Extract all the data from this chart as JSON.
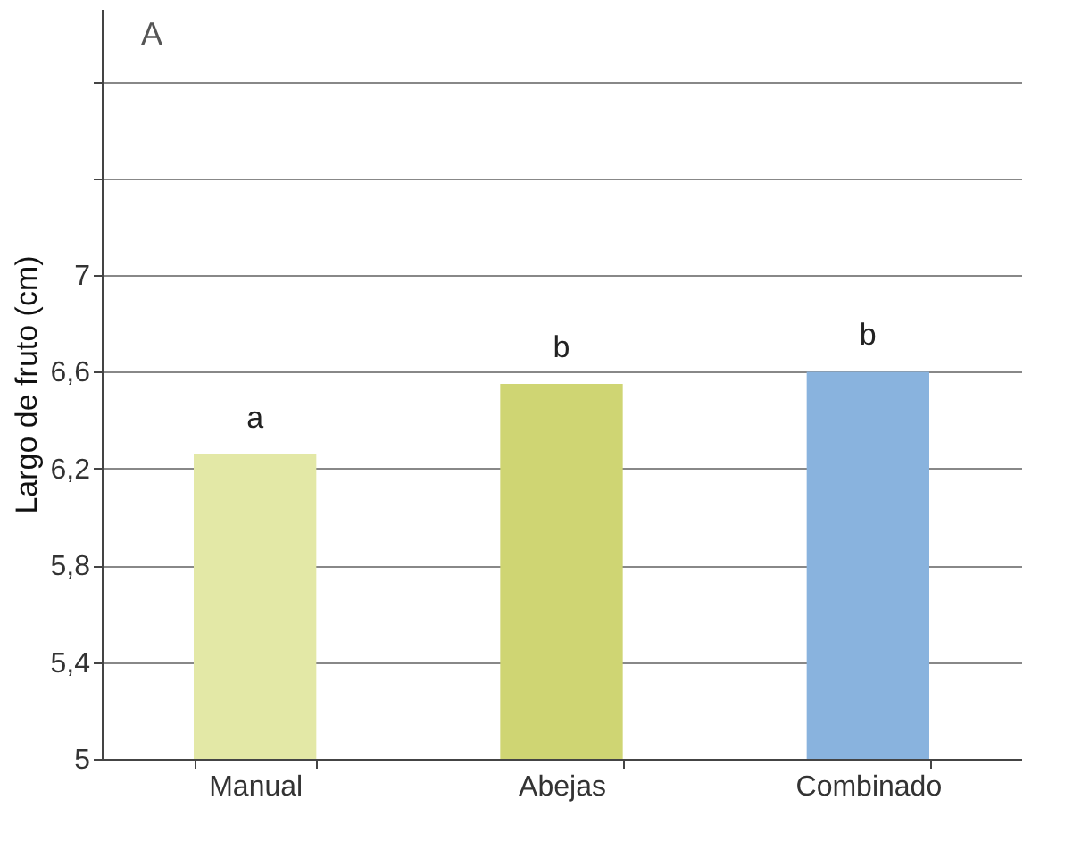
{
  "chart_data": {
    "type": "bar",
    "ylabel": "Largo de fruto (cm)",
    "categories": [
      "Manual",
      "Abejas",
      "Combinado"
    ],
    "values": [
      6.26,
      6.55,
      6.6
    ],
    "colors": [
      "#e3e8a6",
      "#cfd573",
      "#89b3de"
    ],
    "ylim": [
      5,
      8.1
    ],
    "yticks": [
      5,
      {
        "value": 5.4,
        "label": "5,4"
      },
      {
        "value": 5.8,
        "label": "5,8"
      },
      {
        "value": 6.2,
        "label": "6,2"
      },
      {
        "value": 6.6,
        "label": "6,6"
      },
      7,
      {
        "value": 7.4,
        "label": null
      },
      {
        "value": 7.8,
        "label": null
      }
    ],
    "grid": "y",
    "annotations": [
      "A",
      {
        "text": "a",
        "x": "Manual",
        "y": 6.26
      },
      {
        "text": "b",
        "x": "Abejas",
        "y": 6.55
      },
      {
        "text": "b",
        "x": "Combinado",
        "y": 6.6
      }
    ]
  }
}
